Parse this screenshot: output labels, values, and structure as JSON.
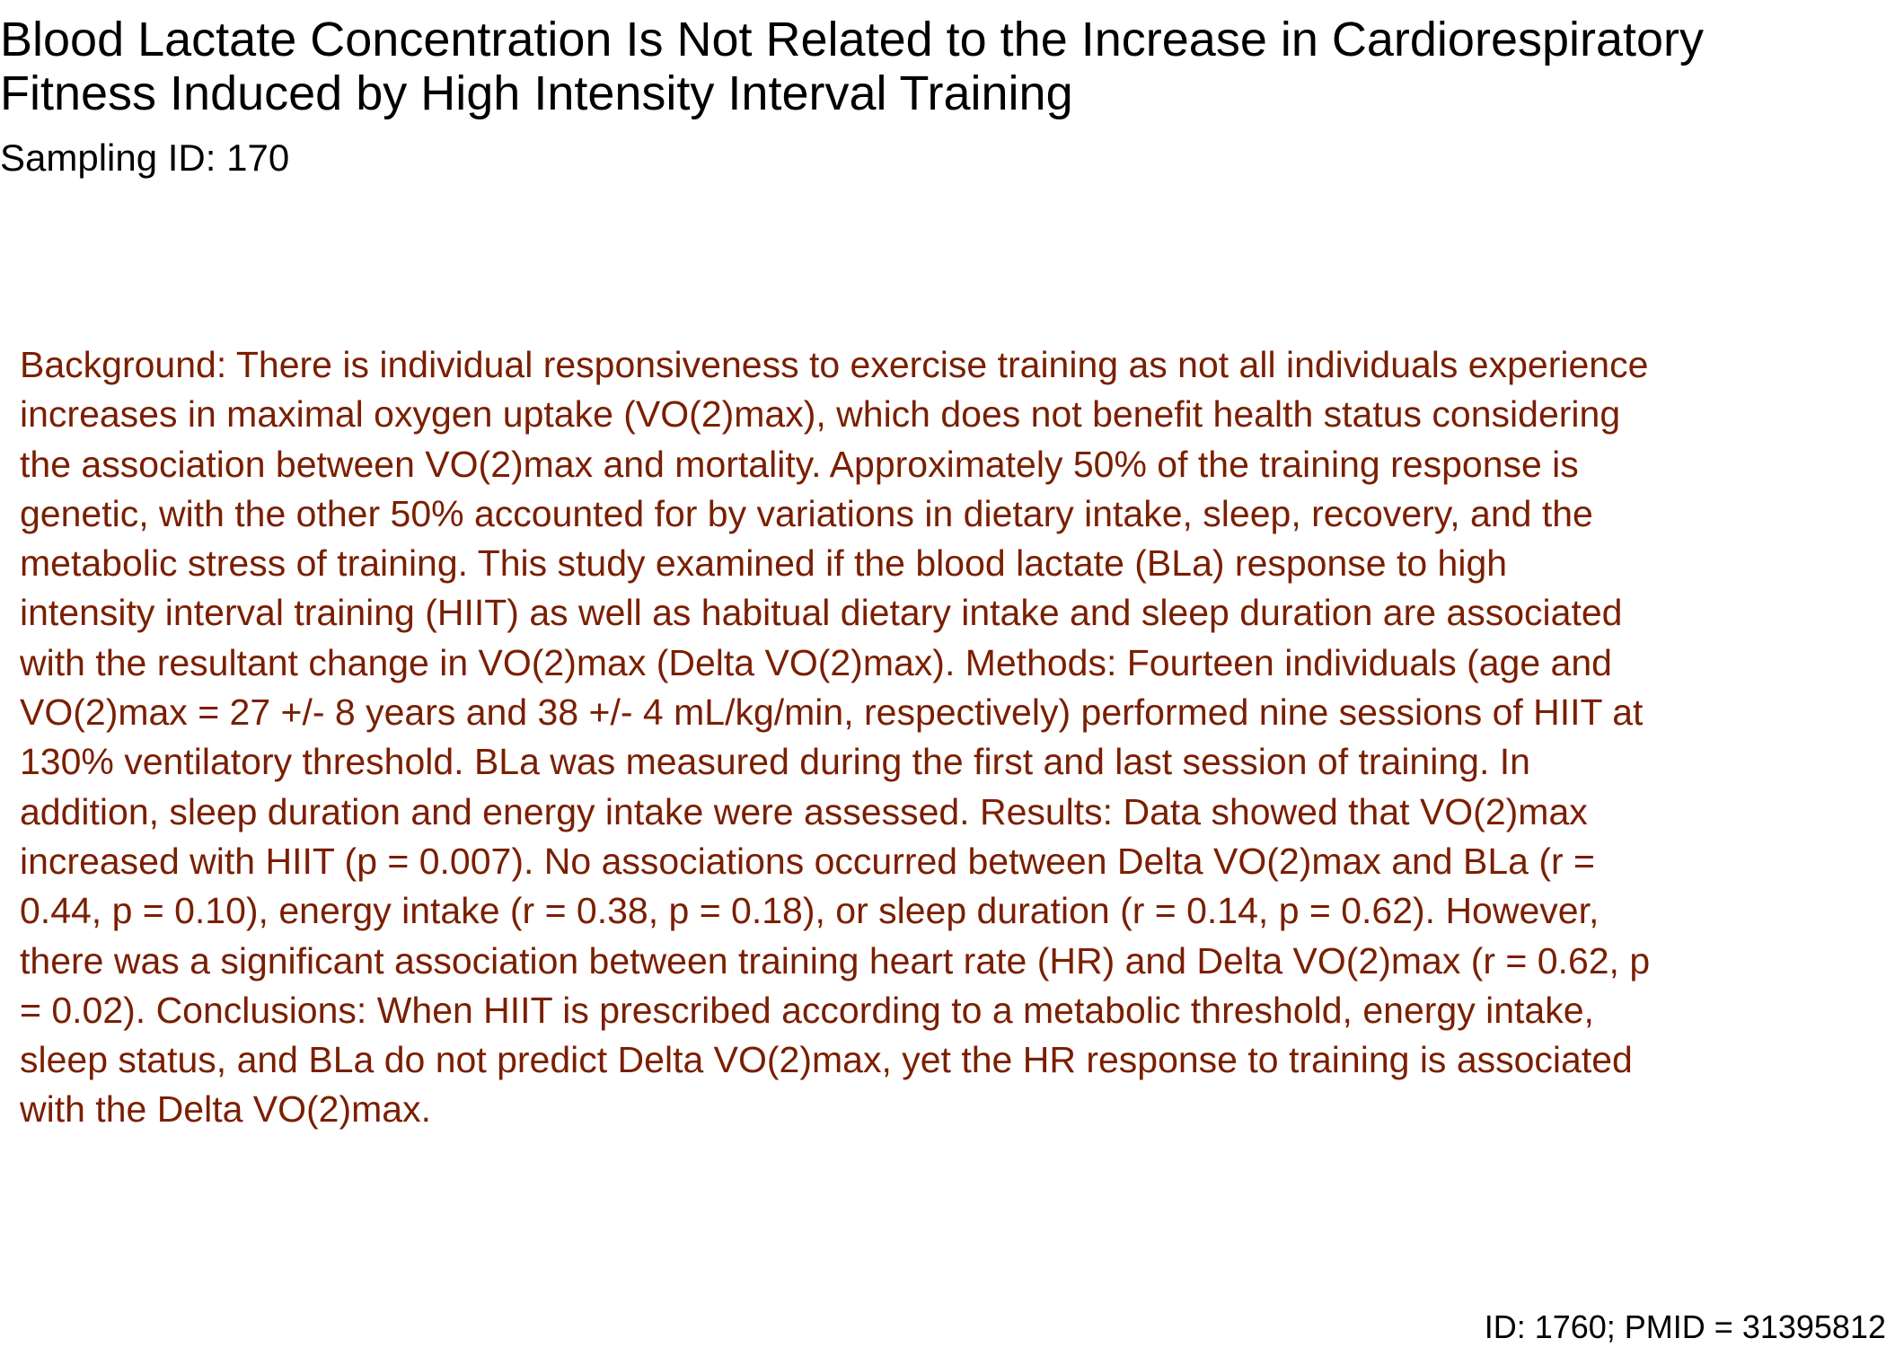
{
  "document": {
    "title": "Blood Lactate Concentration Is Not Related to the Increase in Cardiorespiratory Fitness Induced by High Intensity Interval Training",
    "sampling_id": "Sampling ID: 170",
    "abstract": "Background: There is individual responsiveness to exercise training as not all individuals experience\nincreases in maximal oxygen uptake (VO(2)max), which does not benefit health status considering\nthe association between VO(2)max and mortality. Approximately 50% of the training response is\ngenetic, with the other 50% accounted for by variations in dietary intake, sleep, recovery, and the\nmetabolic stress of training. This study examined if the blood lactate (BLa) response to high\nintensity interval training (HIIT) as well as habitual dietary intake and sleep duration are associated\nwith the resultant change in VO(2)max (Delta VO(2)max). Methods: Fourteen individuals (age and\nVO(2)max = 27 +/- 8 years and 38 +/- 4 mL/kg/min, respectively) performed nine sessions of HIIT at\n130% ventilatory threshold. BLa was measured during the first and last session of training. In\naddition, sleep duration and energy intake were assessed. Results: Data showed that VO(2)max\nincreased with HIIT (p = 0.007). No associations occurred between Delta VO(2)max and BLa (r =\n0.44, p = 0.10), energy intake (r = 0.38, p = 0.18), or sleep duration (r = 0.14, p = 0.62). However,\nthere was a significant association between training heart rate (HR) and Delta VO(2)max (r = 0.62, p\n= 0.02). Conclusions: When HIIT is prescribed according to a metabolic threshold, energy intake,\nsleep status, and BLa do not predict Delta VO(2)max, yet the HR response to training is associated\nwith the Delta VO(2)max.",
    "footer_id": "ID: 1760; PMID = 31395812"
  },
  "colors": {
    "title_text": "#000000",
    "abstract_text": "#7a1f00",
    "background": "#ffffff"
  }
}
